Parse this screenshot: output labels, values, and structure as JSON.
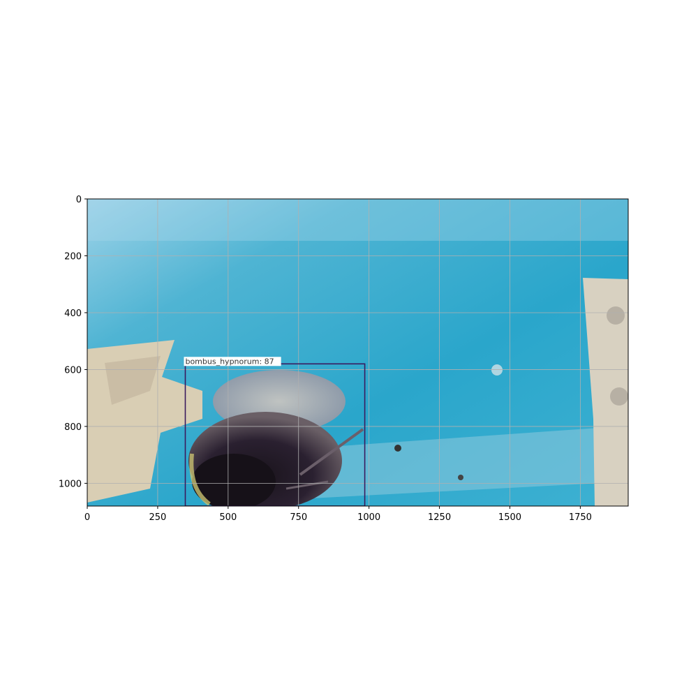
{
  "chart_data": {
    "type": "image-with-detection",
    "title": "",
    "xlabel": "",
    "ylabel": "",
    "image_size": {
      "width": 1920,
      "height": 1080
    },
    "xlim": [
      0,
      1920
    ],
    "ylim": [
      1080,
      0
    ],
    "x_ticks": [
      0,
      250,
      500,
      750,
      1000,
      1250,
      1500,
      1750
    ],
    "y_ticks": [
      0,
      200,
      400,
      600,
      800,
      1000
    ],
    "grid": true,
    "detections": [
      {
        "label": "bombus_hypnorum",
        "score": 87,
        "x_min": 348,
        "y_min": 580,
        "x_max": 985,
        "y_max": 1080,
        "color": "#3b1a5e"
      }
    ],
    "scene_colors": {
      "water": "#2fa8c9",
      "water_light": "#8fcbe3",
      "object_left": "#d8ccb0",
      "bracket_right": "#d9d2c2",
      "bee_dark": "#1e1a22",
      "bee_fur": "#b8b0a8"
    }
  }
}
